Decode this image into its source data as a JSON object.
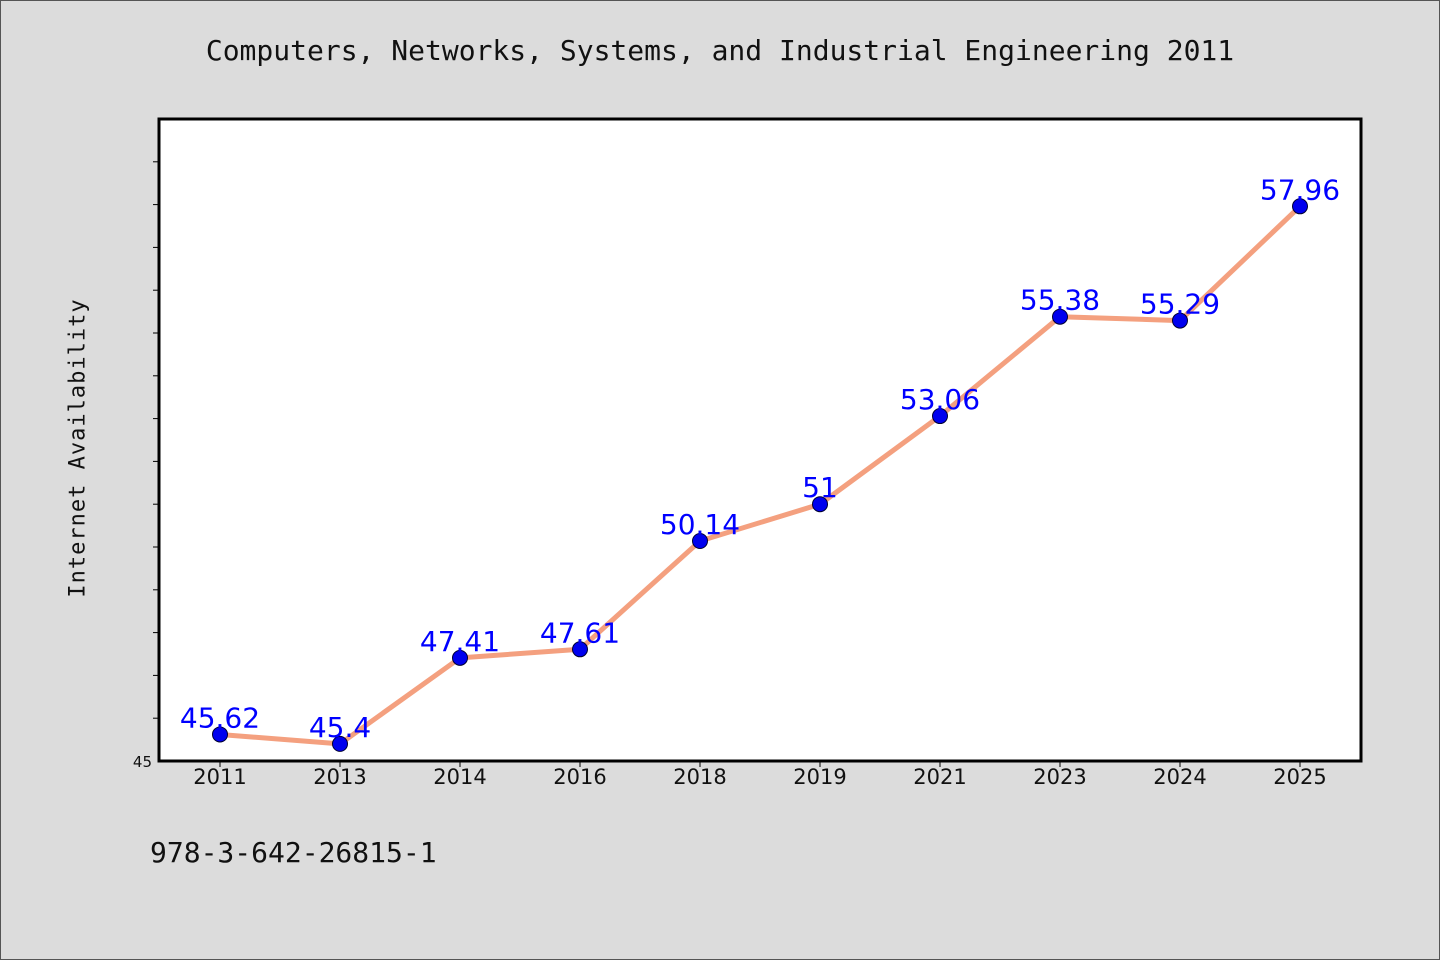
{
  "title": "Computers, Networks, Systems, and Industrial Engineering 2011",
  "footer_code": "978-3-642-26815-1",
  "chart_data": {
    "type": "line",
    "title": "Computers, Networks, Systems, and Industrial Engineering 2011",
    "xlabel": "",
    "ylabel": "Internet Availability",
    "categories": [
      "2011",
      "2013",
      "2014",
      "2016",
      "2018",
      "2019",
      "2021",
      "2023",
      "2024",
      "2025"
    ],
    "series": [
      {
        "values": [
          45.62,
          45.4,
          47.41,
          47.61,
          50.14,
          51,
          53.06,
          55.38,
          55.29,
          57.96
        ],
        "labels": [
          "45.62",
          "45.4",
          "47.41",
          "47.61",
          "50.14",
          "51",
          "53.06",
          "55.38",
          "55.29",
          "57.96"
        ],
        "line_color": "#f4a07f",
        "marker_color": "#0000ee",
        "label_color": "#0000ff"
      }
    ],
    "ylim": [
      45,
      60
    ],
    "y_tick_labels": [
      "45"
    ],
    "grid": false,
    "legend": "none"
  }
}
